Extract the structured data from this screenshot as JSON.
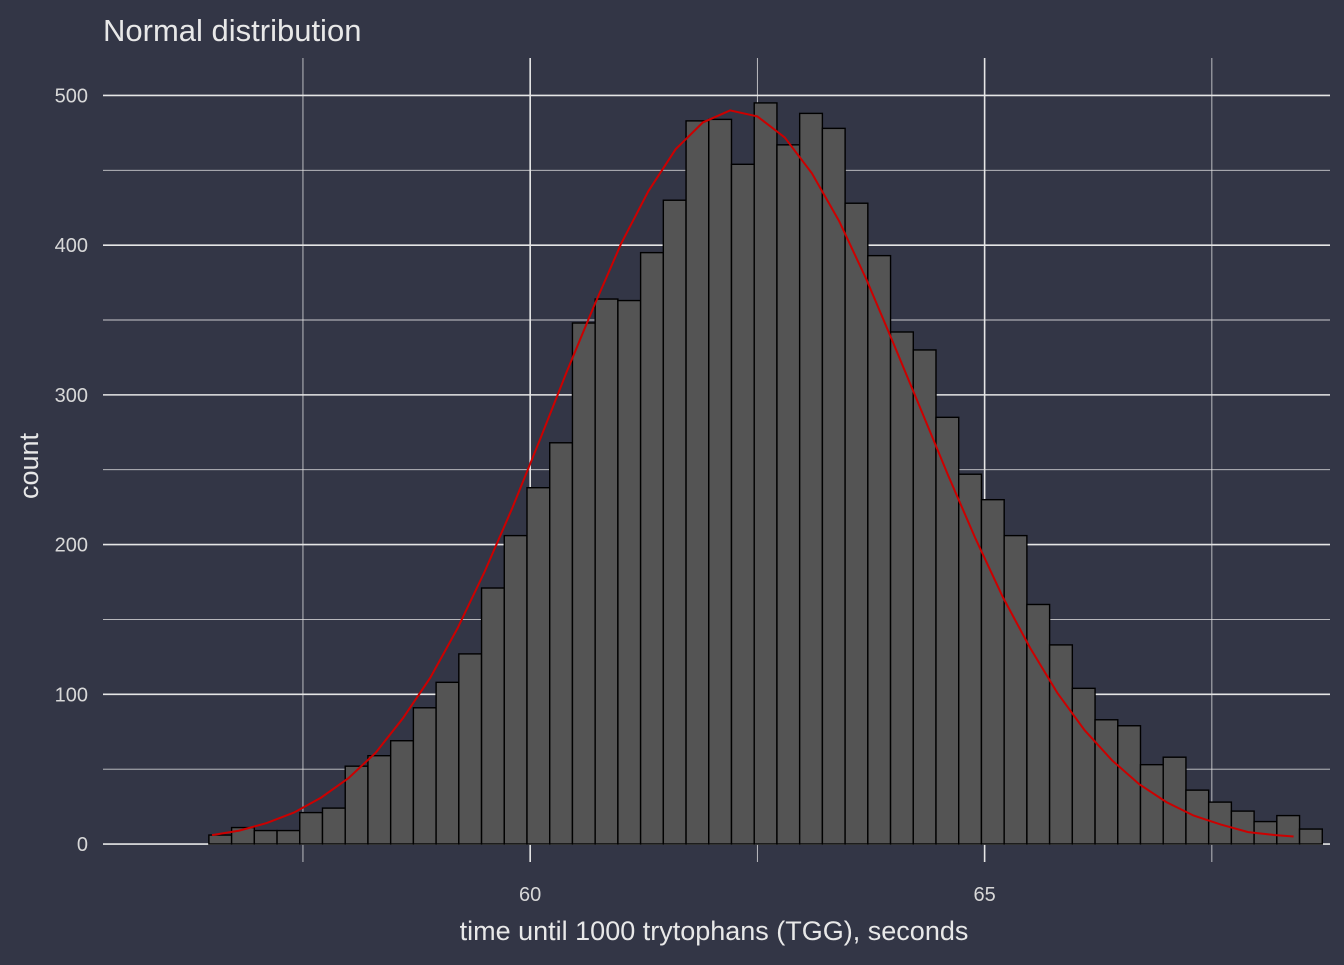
{
  "chart_data": {
    "type": "bar",
    "title": "Normal distribution",
    "xlabel": "time until 1000 trytophans (TGG), seconds",
    "ylabel": "count",
    "xlim": [
      55.3,
      68.8
    ],
    "ylim": [
      -12,
      525
    ],
    "x_ticks": [
      60,
      65
    ],
    "x_minor_ticks": [
      57.5,
      62.5,
      67.5
    ],
    "y_ticks": [
      0,
      100,
      200,
      300,
      400,
      500
    ],
    "y_minor_ticks": [
      50,
      150,
      250,
      350,
      450
    ],
    "grid": true,
    "bin_start": 56.465,
    "bin_width": 0.25,
    "values": [
      6,
      11,
      9,
      9,
      21,
      24,
      52,
      59,
      69,
      91,
      108,
      127,
      171,
      206,
      238,
      268,
      348,
      364,
      363,
      395,
      430,
      483,
      484,
      454,
      495,
      467,
      488,
      478,
      428,
      393,
      342,
      330,
      285,
      247,
      230,
      206,
      160,
      133,
      104,
      83,
      79,
      53,
      58,
      36,
      28,
      22,
      15,
      19,
      10
    ],
    "density_curve": {
      "x": [
        56.5,
        56.8,
        57.1,
        57.4,
        57.7,
        58.0,
        58.3,
        58.6,
        58.9,
        59.2,
        59.5,
        59.8,
        60.1,
        60.4,
        60.7,
        61.0,
        61.3,
        61.6,
        61.9,
        62.2,
        62.5,
        62.8,
        63.1,
        63.4,
        63.7,
        64.0,
        64.3,
        64.6,
        64.9,
        65.2,
        65.5,
        65.8,
        66.1,
        66.4,
        66.7,
        67.0,
        67.3,
        67.6,
        67.9,
        68.2,
        68.4
      ],
      "y": [
        6,
        9,
        14,
        21,
        31,
        44,
        61,
        84,
        111,
        144,
        182,
        224,
        269,
        315,
        359,
        401,
        436,
        464,
        482,
        490,
        486,
        472,
        448,
        416,
        377,
        334,
        290,
        246,
        204,
        165,
        131,
        101,
        76,
        56,
        40,
        28,
        19,
        13,
        8,
        6,
        5
      ],
      "color": "#cc0000"
    },
    "colors": {
      "background": "#333646",
      "bar_fill": "#545454",
      "bar_stroke": "#000000",
      "grid": "#e6e6e6",
      "text": "#e8e8e8"
    }
  }
}
